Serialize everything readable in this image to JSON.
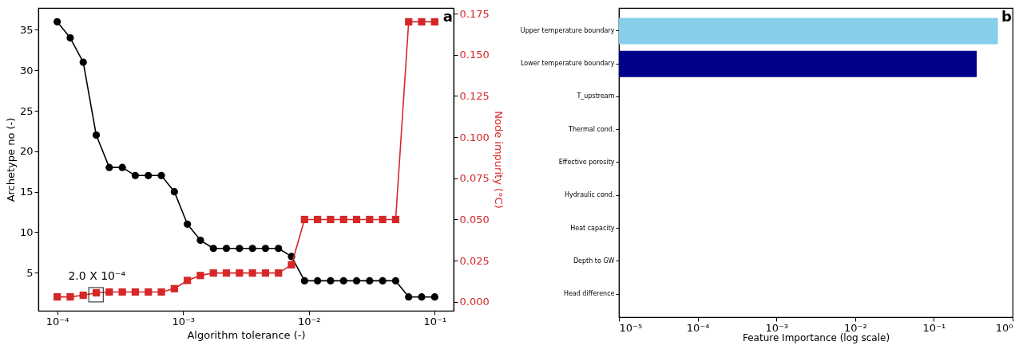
{
  "chart_data": [
    {
      "type": "line",
      "xlabel": "Algorithm tolerance (-)",
      "ylabel": "Archetype no (-)",
      "y2label": "Node impurity (°C)",
      "log": "x",
      "grid": false,
      "line_style": "solid",
      "x": [
        0.0001,
        0.0001269,
        0.000161,
        0.0002043,
        0.0002593,
        0.000329,
        0.0004175,
        0.0005298,
        0.0006723,
        0.0008532,
        0.001083,
        0.001374,
        0.001743,
        0.002212,
        0.002807,
        0.003562,
        0.00452,
        0.005736,
        0.007279,
        0.009237,
        0.01172,
        0.01487,
        0.01887,
        0.02395,
        0.03039,
        0.03857,
        0.04894,
        0.0621,
        0.0788,
        0.1
      ],
      "xlim": [
        7.08e-05,
        0.1413
      ],
      "xticks": [
        {
          "value": 0.0001,
          "label": "10⁻⁴"
        },
        {
          "value": 0.001,
          "label": "10⁻³"
        },
        {
          "value": 0.01,
          "label": "10⁻²"
        },
        {
          "value": 0.1,
          "label": "10⁻¹"
        }
      ],
      "ylim": [
        0.3,
        37.7
      ],
      "yticks": [
        5,
        10,
        15,
        20,
        25,
        30,
        35
      ],
      "y2lim": [
        -0.0054,
        0.1784
      ],
      "y2ticks": [
        {
          "value": 0,
          "label": "0.000"
        },
        0.025,
        {
          "value": 0.05,
          "label": "0.050"
        },
        0.075,
        {
          "value": 0.1,
          "label": "0.100"
        },
        0.125,
        {
          "value": 0.15,
          "label": "0.150"
        },
        0.175
      ],
      "series": [
        {
          "color": "#000000",
          "marker": "circle",
          "values": [
            36,
            34,
            31,
            22,
            18,
            18,
            17,
            17,
            17,
            15,
            11,
            9,
            8,
            8,
            8,
            8,
            8,
            8,
            7,
            4,
            4,
            4,
            4,
            4,
            4,
            4,
            4,
            2,
            2,
            2
          ]
        },
        {
          "color": "#d62728",
          "marker": "square",
          "axis": "y2",
          "values": [
            0.003,
            0.003,
            0.004,
            0.0055,
            0.006,
            0.006,
            0.006,
            0.006,
            0.006,
            0.008,
            0.013,
            0.016,
            0.0175,
            0.0175,
            0.0175,
            0.0175,
            0.0175,
            0.0175,
            0.0225,
            0.05,
            0.05,
            0.05,
            0.05,
            0.05,
            0.05,
            0.05,
            0.05,
            0.17,
            0.17,
            0.17
          ]
        }
      ],
      "annotations": [
        "2.0 X 10⁻⁴",
        "a"
      ]
    },
    {
      "type": "bar",
      "orientation": "horizontal",
      "log": "x",
      "grid": false,
      "xlabel": "Feature Importance (log scale)",
      "categories": [
        "Upper temperature boundary",
        "Lower temperature boundary",
        "T_upstream",
        "Thermal cond.",
        "Effective porosity",
        "Hydraulic cond.",
        "Heat capacity",
        "Depth to GW",
        "Head difference"
      ],
      "values": [
        0.65,
        0.35,
        null,
        null,
        null,
        null,
        null,
        null,
        null
      ],
      "colors": [
        "#87ceeb",
        "#00008b",
        null,
        null,
        null,
        null,
        null,
        null,
        null
      ],
      "xlim": [
        1e-05,
        1
      ],
      "xticks": [
        {
          "value": 1e-05,
          "label": "10⁻⁵"
        },
        {
          "value": 0.0001,
          "label": "10⁻⁴"
        },
        {
          "value": 0.001,
          "label": "10⁻³"
        },
        {
          "value": 0.01,
          "label": "10⁻²"
        },
        {
          "value": 0.1,
          "label": "10⁻¹"
        },
        {
          "value": 1,
          "label": "10⁰"
        }
      ],
      "annotations": [
        "b"
      ]
    }
  ]
}
